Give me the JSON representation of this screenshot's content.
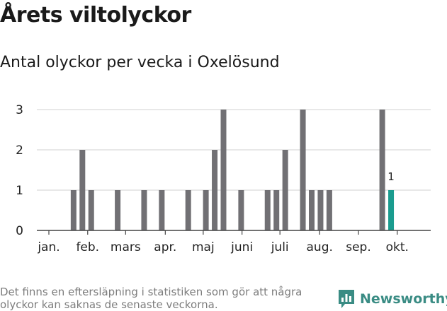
{
  "chart_data": {
    "type": "bar",
    "title": "Årets viltolyckor",
    "subtitle": "Antal olyckor per vecka i Oxelösund",
    "xlabel": "",
    "ylabel": "",
    "ylim": [
      0,
      3
    ],
    "yticks": [
      "0",
      "1",
      "2",
      "3"
    ],
    "grid": true,
    "week_count": 44,
    "weeks": [
      1,
      2,
      3,
      4,
      5,
      6,
      7,
      8,
      9,
      10,
      11,
      12,
      13,
      14,
      15,
      16,
      17,
      18,
      19,
      20,
      21,
      22,
      23,
      24,
      25,
      26,
      27,
      28,
      29,
      30,
      31,
      32,
      33,
      34,
      35,
      36,
      37,
      38,
      39,
      40,
      41,
      42,
      43,
      44
    ],
    "values": [
      0,
      0,
      0,
      1,
      2,
      1,
      0,
      0,
      1,
      0,
      0,
      1,
      0,
      1,
      0,
      0,
      1,
      0,
      1,
      2,
      3,
      0,
      1,
      0,
      0,
      1,
      1,
      2,
      0,
      3,
      1,
      1,
      1,
      0,
      0,
      0,
      0,
      0,
      3,
      1,
      null,
      null,
      null,
      null
    ],
    "highlight_week": 40,
    "highlight_label": "1",
    "bar_color": "#717074",
    "highlight_color": "#1a9c8f",
    "months": [
      {
        "label": "jan.",
        "week": 1.2
      },
      {
        "label": "feb.",
        "week": 5.6
      },
      {
        "label": "mars",
        "week": 9.9
      },
      {
        "label": "apr.",
        "week": 14.4
      },
      {
        "label": "maj",
        "week": 18.7
      },
      {
        "label": "juni",
        "week": 23.1
      },
      {
        "label": "juli",
        "week": 27.4
      },
      {
        "label": "aug.",
        "week": 31.9
      },
      {
        "label": "sep.",
        "week": 36.3
      },
      {
        "label": "okt.",
        "week": 40.7
      }
    ]
  },
  "footnote": "Det finns en eftersläpning i statistiken som gör att några olyckor kan saknas de senaste veckorna.",
  "brand": {
    "name": "Newsworthy",
    "icon": "newsworthy-logo-icon",
    "color": "#3a8c84"
  }
}
